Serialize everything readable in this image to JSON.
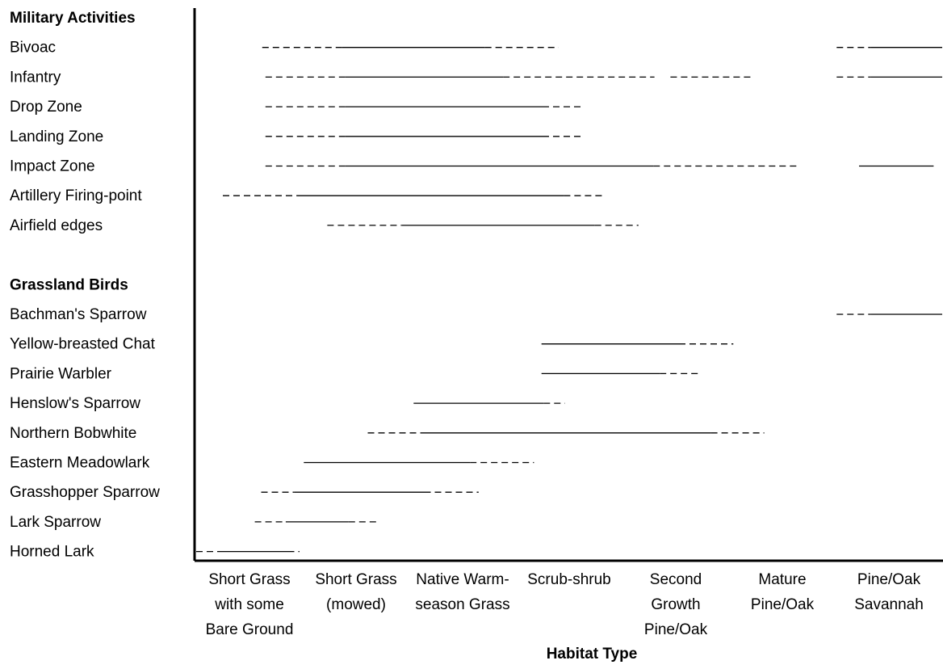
{
  "chart_data": {
    "type": "range-bar",
    "xlabel": "Habitat Type",
    "x_axis_categories": [
      [
        "Short Grass",
        "with some",
        "Bare Ground"
      ],
      [
        "Short Grass",
        "(mowed)"
      ],
      [
        "Native Warm-",
        "season Grass"
      ],
      [
        "Scrub-shrub"
      ],
      [
        "Second",
        "Growth",
        "Pine/Oak"
      ],
      [
        "Mature",
        "Pine/Oak"
      ],
      [
        "Pine/Oak",
        "Savannah"
      ]
    ],
    "groups": [
      {
        "name": "Military Activities",
        "rows": [
          {
            "label": "Bivoac",
            "segments": [
              {
                "style": "dashed",
                "start": 0.62,
                "end": 1.37
              },
              {
                "style": "solid",
                "start": 1.37,
                "end": 2.71
              },
              {
                "style": "dashed",
                "start": 2.71,
                "end": 3.4
              },
              {
                "style": "dashed",
                "start": 6.01,
                "end": 6.33
              },
              {
                "style": "solid",
                "start": 6.33,
                "end": 7.0
              }
            ]
          },
          {
            "label": "Infantry",
            "segments": [
              {
                "style": "dashed",
                "start": 0.65,
                "end": 1.4
              },
              {
                "style": "solid",
                "start": 1.4,
                "end": 2.88
              },
              {
                "style": "dashed",
                "start": 2.88,
                "end": 4.3
              },
              {
                "style": "dashed",
                "start": 4.45,
                "end": 5.2
              },
              {
                "style": "dashed",
                "start": 6.01,
                "end": 6.33
              },
              {
                "style": "solid",
                "start": 6.33,
                "end": 7.0
              }
            ]
          },
          {
            "label": "Drop Zone",
            "segments": [
              {
                "style": "dashed",
                "start": 0.65,
                "end": 1.4
              },
              {
                "style": "solid",
                "start": 1.4,
                "end": 3.25
              },
              {
                "style": "dashed",
                "start": 3.25,
                "end": 3.64
              }
            ]
          },
          {
            "label": "Landing Zone",
            "segments": [
              {
                "style": "dashed",
                "start": 0.65,
                "end": 1.4
              },
              {
                "style": "solid",
                "start": 1.4,
                "end": 3.25
              },
              {
                "style": "dashed",
                "start": 3.25,
                "end": 3.64
              }
            ]
          },
          {
            "label": "Impact Zone",
            "segments": [
              {
                "style": "dashed",
                "start": 0.65,
                "end": 1.4
              },
              {
                "style": "solid",
                "start": 1.4,
                "end": 4.29
              },
              {
                "style": "dashed",
                "start": 4.29,
                "end": 5.64
              },
              {
                "style": "solid",
                "start": 6.22,
                "end": 6.92
              }
            ]
          },
          {
            "label": "Artillery Firing-point",
            "segments": [
              {
                "style": "dashed",
                "start": 0.25,
                "end": 0.94
              },
              {
                "style": "solid",
                "start": 0.94,
                "end": 3.45
              },
              {
                "style": "dashed",
                "start": 3.45,
                "end": 3.84
              }
            ]
          },
          {
            "label": "Airfield edges",
            "segments": [
              {
                "style": "dashed",
                "start": 1.23,
                "end": 1.93
              },
              {
                "style": "solid",
                "start": 1.93,
                "end": 3.74
              },
              {
                "style": "dashed",
                "start": 3.74,
                "end": 4.15
              }
            ]
          }
        ]
      },
      {
        "name": "Grassland Birds",
        "rows": [
          {
            "label": "Bachman's Sparrow",
            "segments": [
              {
                "style": "dashed",
                "start": 6.01,
                "end": 6.33
              },
              {
                "style": "solid",
                "start": 6.33,
                "end": 7.0
              }
            ]
          },
          {
            "label": "Yellow-breasted Chat",
            "segments": [
              {
                "style": "solid",
                "start": 3.24,
                "end": 4.53
              },
              {
                "style": "dashed",
                "start": 4.53,
                "end": 5.04
              }
            ]
          },
          {
            "label": "Prairie Warbler",
            "segments": [
              {
                "style": "solid",
                "start": 3.24,
                "end": 4.35
              },
              {
                "style": "dashed",
                "start": 4.35,
                "end": 4.74
              }
            ]
          },
          {
            "label": "Henslow's Sparrow",
            "segments": [
              {
                "style": "solid",
                "start": 2.04,
                "end": 3.26
              },
              {
                "style": "dashed",
                "start": 3.26,
                "end": 3.46
              }
            ]
          },
          {
            "label": "Northern Bobwhite",
            "segments": [
              {
                "style": "dashed",
                "start": 1.61,
                "end": 2.11
              },
              {
                "style": "solid",
                "start": 2.11,
                "end": 4.83
              },
              {
                "style": "dashed",
                "start": 4.83,
                "end": 5.33
              }
            ]
          },
          {
            "label": "Eastern Meadowlark",
            "segments": [
              {
                "style": "solid",
                "start": 1.01,
                "end": 2.57
              },
              {
                "style": "dashed",
                "start": 2.57,
                "end": 3.17
              }
            ]
          },
          {
            "label": "Grasshopper Sparrow",
            "segments": [
              {
                "style": "dashed",
                "start": 0.61,
                "end": 0.92
              },
              {
                "style": "solid",
                "start": 0.92,
                "end": 2.14
              },
              {
                "style": "dashed",
                "start": 2.14,
                "end": 2.65
              }
            ]
          },
          {
            "label": "Lark Sparrow",
            "segments": [
              {
                "style": "dashed",
                "start": 0.55,
                "end": 0.84
              },
              {
                "style": "solid",
                "start": 0.84,
                "end": 1.43
              },
              {
                "style": "dashed",
                "start": 1.43,
                "end": 1.72
              }
            ]
          },
          {
            "label": "Horned Lark",
            "segments": [
              {
                "style": "dashed",
                "start": 0.0,
                "end": 0.22
              },
              {
                "style": "solid",
                "start": 0.22,
                "end": 0.86
              },
              {
                "style": "dashed",
                "start": 0.86,
                "end": 0.97
              }
            ]
          }
        ]
      }
    ]
  }
}
